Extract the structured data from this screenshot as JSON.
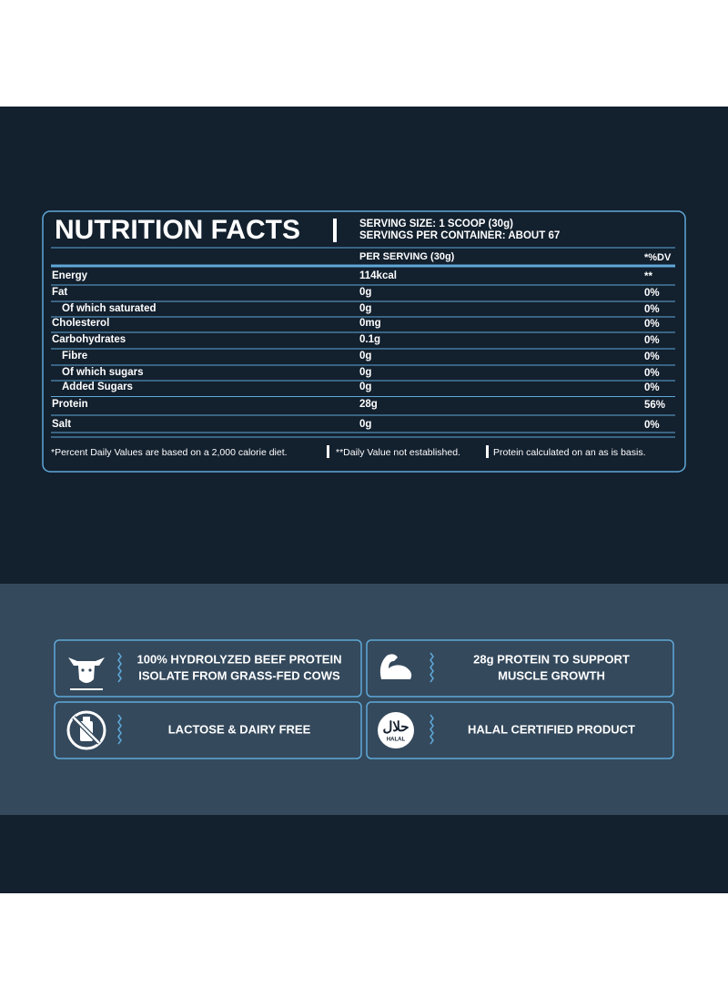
{
  "header": {
    "title": "NUTRITION FACTS",
    "serving_size": "SERVING SIZE: 1 SCOOP (30g)",
    "servings_per_container": "SERVINGS PER CONTAINER: ABOUT 67"
  },
  "table": {
    "columns": [
      "PER SERVING (30g)",
      "*%DV"
    ],
    "rows": [
      {
        "label": "Energy",
        "amount": "114kcal",
        "dv": "**"
      },
      {
        "label": "Fat",
        "amount": "0g",
        "dv": "0%"
      },
      {
        "label": "Of which saturated",
        "amount": "0g",
        "dv": "0%",
        "sub": true
      },
      {
        "label": "Cholesterol",
        "amount": "0mg",
        "dv": "0%"
      },
      {
        "label": "Carbohydrates",
        "amount": "0.1g",
        "dv": "0%"
      },
      {
        "label": "Fibre",
        "amount": "0g",
        "dv": "0%",
        "sub": true
      },
      {
        "label": "Of which sugars",
        "amount": "0g",
        "dv": "0%",
        "sub": true
      },
      {
        "label": "Added Sugars",
        "amount": "0g",
        "dv": "0%",
        "sub": true
      },
      {
        "label": "Protein",
        "amount": "28g",
        "dv": "56%"
      },
      {
        "label": "Salt",
        "amount": "0g",
        "dv": "0%"
      }
    ]
  },
  "footnotes": [
    "*Percent Daily Values are based on a 2,000 calorie diet.",
    "**Daily Value not established.",
    "Protein calculated on an as is basis."
  ],
  "features": [
    {
      "lines": [
        "100% HYDROLYZED BEEF PROTEIN",
        "ISOLATE FROM GRASS-FED COWS"
      ]
    },
    {
      "lines": [
        "28g PROTEIN TO SUPPORT",
        "MUSCLE GROWTH"
      ]
    },
    {
      "lines": [
        "LACTOSE & DAIRY FREE"
      ]
    },
    {
      "lines": [
        "HALAL CERTIFIED PRODUCT"
      ],
      "icon_text": [
        "حلال",
        "HALAL"
      ]
    }
  ]
}
